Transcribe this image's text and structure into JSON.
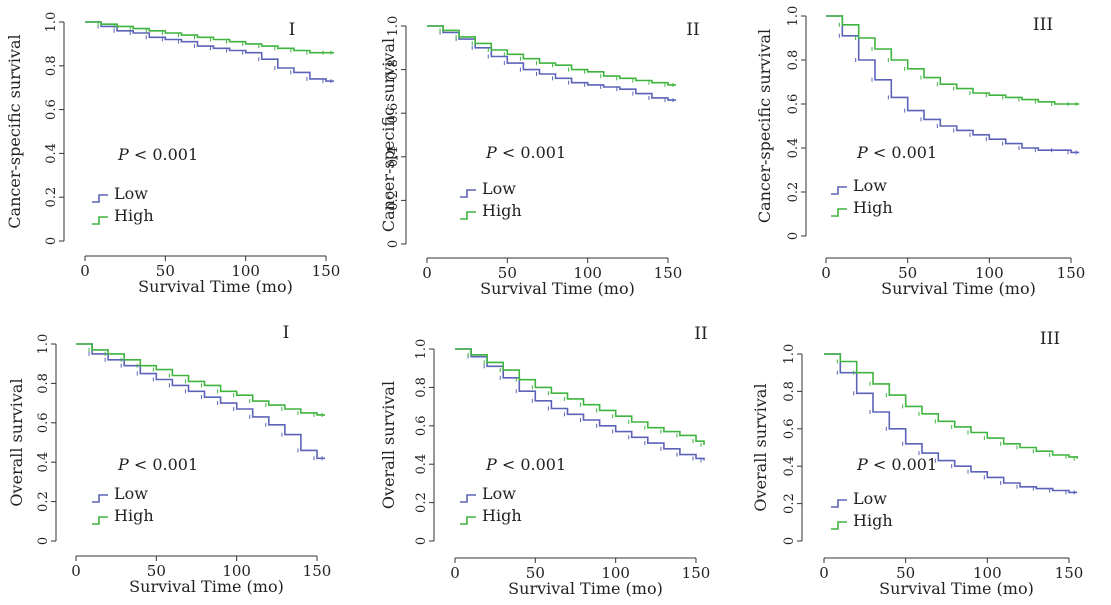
{
  "colors": {
    "low": "#5b63b8",
    "high": "#3fb43f",
    "axis": "#333333"
  },
  "chart_data": [
    {
      "type": "line",
      "panel": "I",
      "ylabel": "Cancer-specific survival",
      "xlabel": "Survival Time (mo)",
      "xticks": [
        "0",
        "50",
        "100",
        "150"
      ],
      "yticks": [
        "0",
        "0.2",
        "0.4",
        "0.6",
        "0.8",
        "1.0"
      ],
      "xlim": [
        0,
        160
      ],
      "ylim": [
        0,
        1
      ],
      "annotation_p": "P",
      "annotation_rest": " < 0.001",
      "legend": [
        {
          "label": "Low"
        },
        {
          "label": "High"
        }
      ],
      "series": [
        {
          "name": "Low",
          "x": [
            0,
            10,
            20,
            30,
            40,
            50,
            60,
            70,
            80,
            90,
            100,
            110,
            120,
            130,
            140,
            150,
            155
          ],
          "y": [
            1.0,
            0.98,
            0.96,
            0.95,
            0.93,
            0.92,
            0.91,
            0.89,
            0.88,
            0.87,
            0.86,
            0.83,
            0.79,
            0.77,
            0.74,
            0.73,
            0.73
          ]
        },
        {
          "name": "High",
          "x": [
            0,
            10,
            20,
            30,
            40,
            50,
            60,
            70,
            80,
            90,
            100,
            110,
            120,
            130,
            140,
            150,
            155
          ],
          "y": [
            1.0,
            0.99,
            0.98,
            0.97,
            0.96,
            0.95,
            0.94,
            0.93,
            0.92,
            0.91,
            0.9,
            0.89,
            0.88,
            0.87,
            0.86,
            0.86,
            0.86
          ]
        }
      ]
    },
    {
      "type": "line",
      "panel": "II",
      "ylabel": "Cancer-specific survival",
      "xlabel": "Survival Time (mo)",
      "xticks": [
        "0",
        "50",
        "100",
        "150"
      ],
      "yticks": [
        "0",
        "0.2",
        "0.4",
        "0.6",
        "0.8",
        "1.0"
      ],
      "xlim": [
        0,
        160
      ],
      "ylim": [
        0,
        1
      ],
      "annotation_p": "P",
      "annotation_rest": " < 0.001",
      "legend": [
        {
          "label": "Low"
        },
        {
          "label": "High"
        }
      ],
      "series": [
        {
          "name": "Low",
          "x": [
            0,
            10,
            20,
            30,
            40,
            50,
            60,
            70,
            80,
            90,
            100,
            110,
            120,
            130,
            140,
            150,
            155
          ],
          "y": [
            1.0,
            0.97,
            0.94,
            0.9,
            0.86,
            0.83,
            0.8,
            0.78,
            0.76,
            0.74,
            0.73,
            0.72,
            0.71,
            0.69,
            0.67,
            0.66,
            0.66
          ]
        },
        {
          "name": "High",
          "x": [
            0,
            10,
            20,
            30,
            40,
            50,
            60,
            70,
            80,
            90,
            100,
            110,
            120,
            130,
            140,
            150,
            155
          ],
          "y": [
            1.0,
            0.98,
            0.95,
            0.92,
            0.89,
            0.87,
            0.85,
            0.83,
            0.82,
            0.8,
            0.79,
            0.77,
            0.76,
            0.75,
            0.74,
            0.73,
            0.73
          ]
        }
      ]
    },
    {
      "type": "line",
      "panel": "III",
      "ylabel": "Cancer-specific survival",
      "xlabel": "Survival Time (mo)",
      "xticks": [
        "0",
        "50",
        "100",
        "150"
      ],
      "yticks": [
        "0",
        "0.2",
        "0.4",
        "0.6",
        "0.8",
        "1.0"
      ],
      "xlim": [
        0,
        160
      ],
      "ylim": [
        0,
        1
      ],
      "annotation_p": "P",
      "annotation_rest": " < 0.001",
      "legend": [
        {
          "label": "Low"
        },
        {
          "label": "High"
        }
      ],
      "series": [
        {
          "name": "Low",
          "x": [
            0,
            10,
            20,
            30,
            40,
            50,
            60,
            70,
            80,
            90,
            100,
            110,
            120,
            130,
            140,
            150,
            155
          ],
          "y": [
            1.0,
            0.91,
            0.8,
            0.71,
            0.63,
            0.57,
            0.53,
            0.5,
            0.48,
            0.46,
            0.44,
            0.42,
            0.4,
            0.39,
            0.39,
            0.38,
            0.38
          ]
        },
        {
          "name": "High",
          "x": [
            0,
            10,
            20,
            30,
            40,
            50,
            60,
            70,
            80,
            90,
            100,
            110,
            120,
            130,
            140,
            150,
            155
          ],
          "y": [
            1.0,
            0.96,
            0.9,
            0.85,
            0.8,
            0.76,
            0.72,
            0.69,
            0.67,
            0.65,
            0.64,
            0.63,
            0.62,
            0.61,
            0.6,
            0.6,
            0.6
          ]
        }
      ]
    },
    {
      "type": "line",
      "panel": "I",
      "ylabel": "Overall survival",
      "xlabel": "Survival Time (mo)",
      "xticks": [
        "0",
        "50",
        "100",
        "150"
      ],
      "yticks": [
        "0",
        "0.2",
        "0.4",
        "0.6",
        "0.8",
        "1.0"
      ],
      "xlim": [
        0,
        160
      ],
      "ylim": [
        0,
        1
      ],
      "annotation_p": "P",
      "annotation_rest": " < 0.001",
      "legend": [
        {
          "label": "Low"
        },
        {
          "label": "High"
        }
      ],
      "series": [
        {
          "name": "Low",
          "x": [
            0,
            10,
            20,
            30,
            40,
            50,
            60,
            70,
            80,
            90,
            100,
            110,
            120,
            130,
            140,
            150,
            155
          ],
          "y": [
            1.0,
            0.95,
            0.92,
            0.89,
            0.85,
            0.82,
            0.79,
            0.76,
            0.73,
            0.7,
            0.67,
            0.63,
            0.59,
            0.54,
            0.46,
            0.42,
            0.42
          ]
        },
        {
          "name": "High",
          "x": [
            0,
            10,
            20,
            30,
            40,
            50,
            60,
            70,
            80,
            90,
            100,
            110,
            120,
            130,
            140,
            150,
            155
          ],
          "y": [
            1.0,
            0.97,
            0.95,
            0.92,
            0.89,
            0.87,
            0.84,
            0.81,
            0.79,
            0.76,
            0.74,
            0.71,
            0.69,
            0.67,
            0.65,
            0.64,
            0.64
          ]
        }
      ]
    },
    {
      "type": "line",
      "panel": "II",
      "ylabel": "Overall survival",
      "xlabel": "Survival Time (mo)",
      "xticks": [
        "0",
        "50",
        "100",
        "150"
      ],
      "yticks": [
        "0",
        "0.2",
        "0.4",
        "0.6",
        "0.8",
        "1.0"
      ],
      "xlim": [
        0,
        160
      ],
      "ylim": [
        0,
        1
      ],
      "annotation_p": "P",
      "annotation_rest": " < 0.001",
      "legend": [
        {
          "label": "Low"
        },
        {
          "label": "High"
        }
      ],
      "series": [
        {
          "name": "Low",
          "x": [
            0,
            10,
            20,
            30,
            40,
            50,
            60,
            70,
            80,
            90,
            100,
            110,
            120,
            130,
            140,
            150,
            155
          ],
          "y": [
            1.0,
            0.96,
            0.91,
            0.85,
            0.78,
            0.73,
            0.69,
            0.66,
            0.63,
            0.6,
            0.57,
            0.54,
            0.51,
            0.48,
            0.45,
            0.43,
            0.42
          ]
        },
        {
          "name": "High",
          "x": [
            0,
            10,
            20,
            30,
            40,
            50,
            60,
            70,
            80,
            90,
            100,
            110,
            120,
            130,
            140,
            150,
            155
          ],
          "y": [
            1.0,
            0.97,
            0.93,
            0.89,
            0.84,
            0.8,
            0.77,
            0.74,
            0.71,
            0.68,
            0.65,
            0.62,
            0.59,
            0.57,
            0.55,
            0.52,
            0.5
          ]
        }
      ]
    },
    {
      "type": "line",
      "panel": "III",
      "ylabel": "Overall survival",
      "xlabel": "Survival Time (mo)",
      "xticks": [
        "0",
        "50",
        "100",
        "150"
      ],
      "yticks": [
        "0",
        "0.2",
        "0.4",
        "0.6",
        "0.8",
        "1.0"
      ],
      "xlim": [
        0,
        160
      ],
      "ylim": [
        0,
        1
      ],
      "annotation_p": "P",
      "annotation_rest": " < 0.001",
      "legend": [
        {
          "label": "Low"
        },
        {
          "label": "High"
        }
      ],
      "series": [
        {
          "name": "Low",
          "x": [
            0,
            10,
            20,
            30,
            40,
            50,
            60,
            70,
            80,
            90,
            100,
            110,
            120,
            130,
            140,
            150,
            155
          ],
          "y": [
            1.0,
            0.9,
            0.79,
            0.69,
            0.6,
            0.52,
            0.47,
            0.43,
            0.4,
            0.37,
            0.34,
            0.31,
            0.29,
            0.28,
            0.27,
            0.26,
            0.26
          ]
        },
        {
          "name": "High",
          "x": [
            0,
            10,
            20,
            30,
            40,
            50,
            60,
            70,
            80,
            90,
            100,
            110,
            120,
            130,
            140,
            150,
            155
          ],
          "y": [
            1.0,
            0.96,
            0.9,
            0.84,
            0.78,
            0.72,
            0.68,
            0.64,
            0.61,
            0.58,
            0.55,
            0.52,
            0.5,
            0.48,
            0.46,
            0.45,
            0.44
          ]
        }
      ]
    }
  ]
}
